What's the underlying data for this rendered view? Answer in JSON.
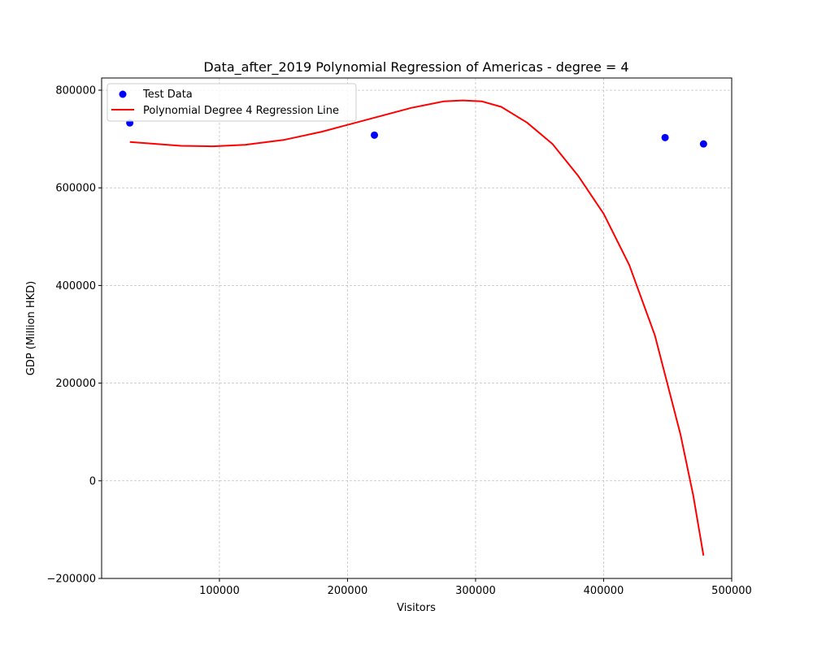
{
  "chart_data": {
    "type": "scatter",
    "title": "Data_after_2019 Polynomial Regression of Americas - degree = 4",
    "xlabel": "Visitors",
    "ylabel": "GDP (Million HKD)",
    "xlim": [
      8000,
      500000
    ],
    "ylim": [
      -200000,
      825000
    ],
    "x_ticks": [
      100000,
      200000,
      300000,
      400000,
      500000
    ],
    "x_tick_labels": [
      "100000",
      "200000",
      "300000",
      "400000",
      "500000"
    ],
    "y_ticks": [
      -200000,
      0,
      200000,
      400000,
      600000,
      800000
    ],
    "y_tick_labels": [
      "−200000",
      "0",
      "200000",
      "400000",
      "600000",
      "800000"
    ],
    "grid": true,
    "legend_position": "top-left",
    "legend": [
      "Test Data",
      "Polynomial Degree 4 Regression Line"
    ],
    "series": [
      {
        "name": "Test Data",
        "type": "scatter",
        "color": "#0000ff",
        "points": [
          {
            "x": 30000,
            "y": 733000
          },
          {
            "x": 221000,
            "y": 708000
          },
          {
            "x": 448000,
            "y": 703000
          },
          {
            "x": 478000,
            "y": 690000
          }
        ]
      },
      {
        "name": "Polynomial Degree 4 Regression Line",
        "type": "line",
        "color": "#ff0000",
        "points": [
          {
            "x": 30000,
            "y": 694000
          },
          {
            "x": 50000,
            "y": 690000
          },
          {
            "x": 70000,
            "y": 686000
          },
          {
            "x": 95000,
            "y": 685000
          },
          {
            "x": 120000,
            "y": 688000
          },
          {
            "x": 150000,
            "y": 698000
          },
          {
            "x": 180000,
            "y": 715000
          },
          {
            "x": 200000,
            "y": 729000
          },
          {
            "x": 220000,
            "y": 743000
          },
          {
            "x": 250000,
            "y": 764000
          },
          {
            "x": 275000,
            "y": 777000
          },
          {
            "x": 290000,
            "y": 779000
          },
          {
            "x": 305000,
            "y": 777000
          },
          {
            "x": 320000,
            "y": 766000
          },
          {
            "x": 340000,
            "y": 734000
          },
          {
            "x": 360000,
            "y": 690000
          },
          {
            "x": 380000,
            "y": 625000
          },
          {
            "x": 400000,
            "y": 547000
          },
          {
            "x": 420000,
            "y": 442000
          },
          {
            "x": 440000,
            "y": 298000
          },
          {
            "x": 460000,
            "y": 95000
          },
          {
            "x": 470000,
            "y": -30000
          },
          {
            "x": 478000,
            "y": -153000
          }
        ]
      }
    ]
  }
}
